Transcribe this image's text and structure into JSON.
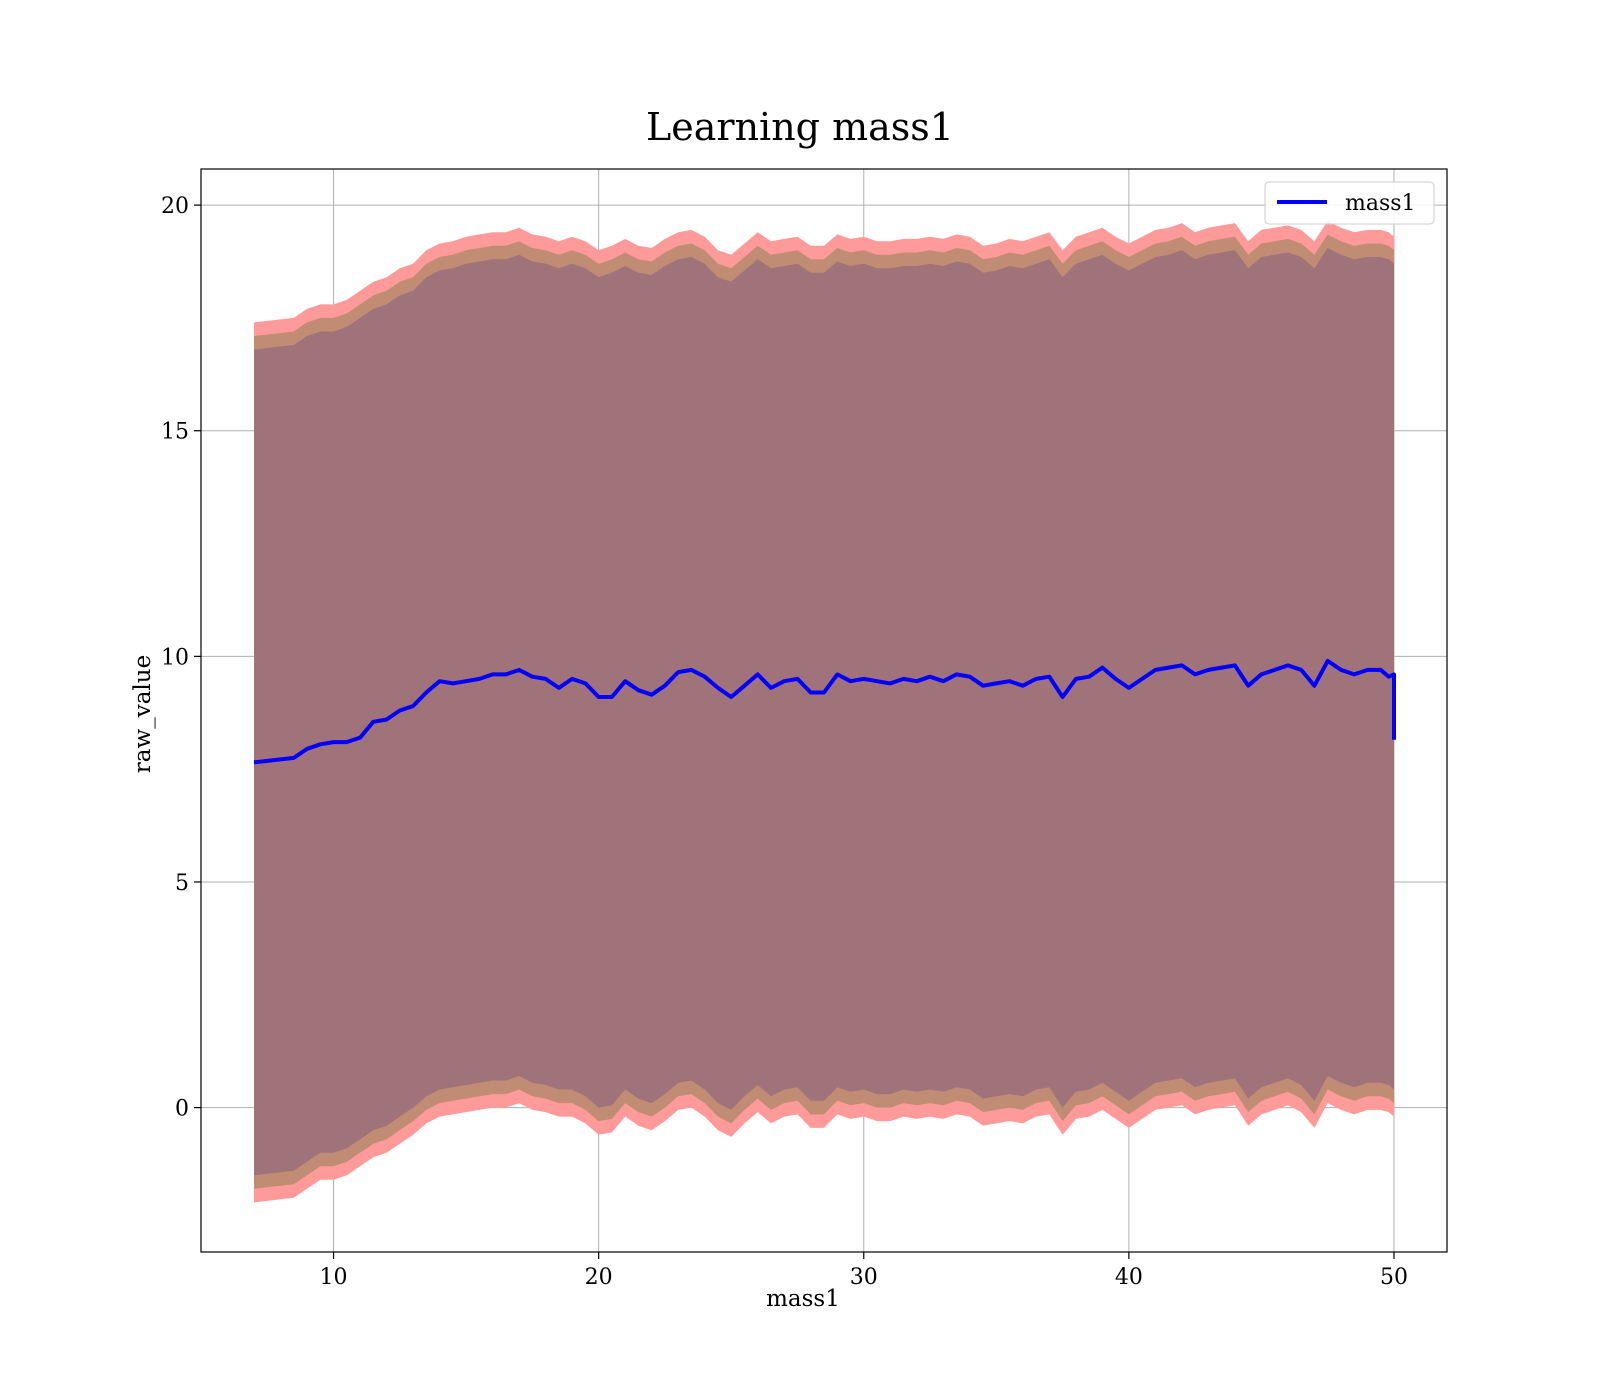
{
  "chart_data": {
    "type": "line",
    "title": "Learning mass1",
    "xlabel": "mass1",
    "ylabel": "raw_value",
    "xlim": [
      5,
      52
    ],
    "ylim": [
      -3.2,
      20.8
    ],
    "xticks": [
      10,
      20,
      30,
      40,
      50
    ],
    "yticks": [
      0,
      5,
      10,
      15,
      20
    ],
    "grid": true,
    "legend_position": "top-right",
    "colors": {
      "line": "#0000ff",
      "band_outer": "#ff9a9a",
      "band_middle": "#c08c73",
      "band_inner": "#a0727a"
    },
    "series": [
      {
        "name": "mass1",
        "x": [
          7.0,
          8.5,
          9.0,
          9.5,
          10.0,
          10.5,
          11.0,
          11.5,
          12.0,
          12.5,
          13.0,
          13.5,
          14.0,
          14.5,
          15.0,
          15.5,
          16.0,
          16.5,
          17.0,
          17.5,
          18.0,
          18.5,
          19.0,
          19.5,
          20.0,
          20.5,
          21.0,
          21.5,
          22.0,
          22.5,
          23.0,
          23.5,
          24.0,
          24.5,
          25.0,
          25.5,
          26.0,
          26.5,
          27.0,
          27.5,
          28.0,
          28.5,
          29.0,
          29.5,
          30.0,
          30.5,
          31.0,
          31.5,
          32.0,
          32.5,
          33.0,
          33.5,
          34.0,
          34.5,
          35.0,
          35.5,
          36.0,
          36.5,
          37.0,
          37.5,
          38.0,
          38.5,
          39.0,
          39.5,
          40.0,
          40.5,
          41.0,
          41.5,
          42.0,
          42.5,
          43.0,
          43.5,
          44.0,
          44.5,
          45.0,
          45.5,
          46.0,
          46.5,
          47.0,
          47.5,
          48.0,
          48.5,
          49.0,
          49.5,
          49.8,
          50.0,
          50.0
        ],
        "y": [
          7.65,
          7.75,
          7.95,
          8.05,
          8.1,
          8.1,
          8.2,
          8.55,
          8.6,
          8.8,
          8.9,
          9.2,
          9.45,
          9.4,
          9.45,
          9.5,
          9.6,
          9.6,
          9.7,
          9.55,
          9.5,
          9.3,
          9.5,
          9.4,
          9.1,
          9.1,
          9.45,
          9.25,
          9.15,
          9.35,
          9.65,
          9.7,
          9.55,
          9.3,
          9.1,
          9.35,
          9.6,
          9.3,
          9.45,
          9.5,
          9.2,
          9.2,
          9.6,
          9.45,
          9.5,
          9.45,
          9.4,
          9.5,
          9.45,
          9.55,
          9.45,
          9.6,
          9.55,
          9.35,
          9.4,
          9.45,
          9.35,
          9.5,
          9.55,
          9.1,
          9.5,
          9.55,
          9.75,
          9.5,
          9.3,
          9.5,
          9.7,
          9.75,
          9.8,
          9.6,
          9.7,
          9.75,
          9.8,
          9.35,
          9.6,
          9.7,
          9.8,
          9.7,
          9.35,
          9.9,
          9.7,
          9.6,
          9.7,
          9.7,
          9.55,
          9.6,
          8.15
        ],
        "band_outer": {
          "upper": [
            17.4,
            17.5,
            17.7,
            17.8,
            17.8,
            17.9,
            18.1,
            18.3,
            18.4,
            18.6,
            18.7,
            19.0,
            19.15,
            19.2,
            19.3,
            19.35,
            19.4,
            19.4,
            19.5,
            19.35,
            19.3,
            19.2,
            19.3,
            19.2,
            19.0,
            19.1,
            19.25,
            19.1,
            19.05,
            19.25,
            19.4,
            19.45,
            19.3,
            19.0,
            18.9,
            19.15,
            19.4,
            19.2,
            19.25,
            19.3,
            19.1,
            19.1,
            19.35,
            19.25,
            19.3,
            19.2,
            19.2,
            19.25,
            19.25,
            19.3,
            19.25,
            19.35,
            19.3,
            19.1,
            19.15,
            19.25,
            19.2,
            19.3,
            19.4,
            19.0,
            19.3,
            19.4,
            19.5,
            19.3,
            19.15,
            19.3,
            19.45,
            19.5,
            19.6,
            19.4,
            19.5,
            19.55,
            19.6,
            19.2,
            19.45,
            19.5,
            19.55,
            19.45,
            19.2,
            19.65,
            19.5,
            19.4,
            19.45,
            19.45,
            19.4,
            19.3,
            18.6
          ],
          "lower": [
            -2.1,
            -2.0,
            -1.8,
            -1.6,
            -1.6,
            -1.5,
            -1.3,
            -1.1,
            -1.0,
            -0.8,
            -0.6,
            -0.35,
            -0.2,
            -0.15,
            -0.1,
            -0.05,
            0.0,
            0.0,
            0.1,
            -0.05,
            -0.1,
            -0.2,
            -0.2,
            -0.35,
            -0.6,
            -0.55,
            -0.2,
            -0.4,
            -0.5,
            -0.3,
            -0.05,
            0.0,
            -0.2,
            -0.5,
            -0.65,
            -0.35,
            -0.1,
            -0.35,
            -0.2,
            -0.15,
            -0.45,
            -0.45,
            -0.15,
            -0.25,
            -0.2,
            -0.3,
            -0.3,
            -0.2,
            -0.25,
            -0.2,
            -0.25,
            -0.15,
            -0.2,
            -0.4,
            -0.35,
            -0.3,
            -0.35,
            -0.2,
            -0.15,
            -0.6,
            -0.25,
            -0.2,
            -0.05,
            -0.25,
            -0.45,
            -0.25,
            -0.05,
            0.0,
            0.05,
            -0.15,
            -0.05,
            0.0,
            0.05,
            -0.4,
            -0.15,
            -0.05,
            0.05,
            -0.1,
            -0.45,
            0.1,
            -0.05,
            -0.15,
            -0.05,
            -0.05,
            -0.1,
            -0.2,
            -1.7
          ]
        },
        "band_middle": {
          "upper": [
            17.1,
            17.2,
            17.4,
            17.5,
            17.5,
            17.6,
            17.8,
            18.0,
            18.1,
            18.3,
            18.4,
            18.7,
            18.85,
            18.9,
            19.0,
            19.05,
            19.1,
            19.1,
            19.2,
            19.05,
            19.0,
            18.9,
            19.0,
            18.9,
            18.7,
            18.8,
            18.95,
            18.8,
            18.75,
            18.95,
            19.1,
            19.15,
            19.0,
            18.7,
            18.6,
            18.85,
            19.1,
            18.9,
            18.95,
            19.0,
            18.8,
            18.8,
            19.05,
            18.95,
            19.0,
            18.9,
            18.9,
            18.95,
            18.95,
            19.0,
            18.95,
            19.05,
            19.0,
            18.8,
            18.85,
            18.95,
            18.9,
            19.0,
            19.1,
            18.7,
            19.0,
            19.1,
            19.2,
            19.0,
            18.85,
            19.0,
            19.15,
            19.2,
            19.3,
            19.1,
            19.2,
            19.25,
            19.3,
            18.9,
            19.15,
            19.2,
            19.25,
            19.15,
            18.9,
            19.35,
            19.2,
            19.1,
            19.15,
            19.15,
            19.1,
            19.0,
            18.3
          ],
          "lower": [
            -1.8,
            -1.7,
            -1.5,
            -1.3,
            -1.3,
            -1.2,
            -1.0,
            -0.8,
            -0.7,
            -0.5,
            -0.3,
            -0.05,
            0.1,
            0.15,
            0.2,
            0.25,
            0.3,
            0.3,
            0.4,
            0.25,
            0.2,
            0.1,
            0.1,
            -0.05,
            -0.3,
            -0.25,
            0.1,
            -0.1,
            -0.2,
            0.0,
            0.25,
            0.3,
            0.1,
            -0.2,
            -0.35,
            -0.05,
            0.2,
            -0.05,
            0.1,
            0.15,
            -0.15,
            -0.15,
            0.15,
            0.05,
            0.1,
            0.0,
            0.0,
            0.1,
            0.05,
            0.1,
            0.05,
            0.15,
            0.1,
            -0.1,
            -0.05,
            0.0,
            -0.05,
            0.1,
            0.15,
            -0.3,
            0.05,
            0.1,
            0.25,
            0.05,
            -0.15,
            0.05,
            0.25,
            0.3,
            0.35,
            0.15,
            0.25,
            0.3,
            0.35,
            -0.1,
            0.15,
            0.25,
            0.35,
            0.2,
            -0.15,
            0.4,
            0.25,
            0.15,
            0.25,
            0.25,
            0.2,
            0.1,
            -1.4
          ]
        },
        "band_inner": {
          "upper": [
            16.8,
            16.9,
            17.1,
            17.2,
            17.2,
            17.3,
            17.5,
            17.7,
            17.8,
            18.0,
            18.1,
            18.4,
            18.55,
            18.6,
            18.7,
            18.75,
            18.8,
            18.8,
            18.9,
            18.75,
            18.7,
            18.6,
            18.7,
            18.6,
            18.4,
            18.5,
            18.65,
            18.5,
            18.45,
            18.65,
            18.8,
            18.85,
            18.7,
            18.4,
            18.3,
            18.55,
            18.8,
            18.6,
            18.65,
            18.7,
            18.5,
            18.5,
            18.75,
            18.65,
            18.7,
            18.6,
            18.6,
            18.65,
            18.65,
            18.7,
            18.65,
            18.75,
            18.7,
            18.5,
            18.55,
            18.65,
            18.6,
            18.7,
            18.8,
            18.4,
            18.7,
            18.8,
            18.9,
            18.7,
            18.55,
            18.7,
            18.85,
            18.9,
            19.0,
            18.8,
            18.9,
            18.95,
            19.0,
            18.6,
            18.85,
            18.9,
            18.95,
            18.85,
            18.6,
            19.05,
            18.9,
            18.8,
            18.85,
            18.85,
            18.8,
            18.7,
            18.0
          ],
          "lower": [
            -1.5,
            -1.4,
            -1.2,
            -1.0,
            -1.0,
            -0.9,
            -0.7,
            -0.5,
            -0.4,
            -0.2,
            0.0,
            0.25,
            0.4,
            0.45,
            0.5,
            0.55,
            0.6,
            0.6,
            0.7,
            0.55,
            0.5,
            0.4,
            0.4,
            0.25,
            0.0,
            0.05,
            0.4,
            0.2,
            0.1,
            0.3,
            0.55,
            0.6,
            0.4,
            0.1,
            -0.05,
            0.25,
            0.5,
            0.25,
            0.4,
            0.45,
            0.15,
            0.15,
            0.45,
            0.35,
            0.4,
            0.3,
            0.3,
            0.4,
            0.35,
            0.4,
            0.35,
            0.45,
            0.4,
            0.2,
            0.25,
            0.3,
            0.25,
            0.4,
            0.45,
            0.0,
            0.35,
            0.4,
            0.55,
            0.35,
            0.15,
            0.35,
            0.55,
            0.6,
            0.65,
            0.45,
            0.55,
            0.6,
            0.65,
            0.2,
            0.45,
            0.55,
            0.65,
            0.5,
            0.15,
            0.7,
            0.55,
            0.45,
            0.55,
            0.55,
            0.5,
            0.4,
            -1.1
          ]
        }
      }
    ]
  }
}
